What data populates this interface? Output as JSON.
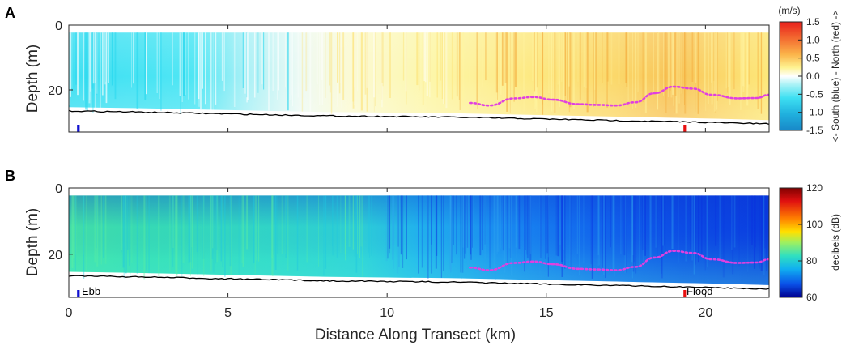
{
  "figure": {
    "xlabel": "Distance Along Transect (km)",
    "x_ticks": [
      "0",
      "5",
      "10",
      "15",
      "20"
    ]
  },
  "colors": {
    "bottom_line": "#000000",
    "pycnocline_dotted": "#e040e0",
    "ebb_marker": "#1010d0",
    "flood_marker": "#e81010"
  },
  "chart_data": [
    {
      "type": "heatmap",
      "panel": "A",
      "ylabel": "Depth (m)",
      "y_ticks": [
        "0",
        "20"
      ],
      "xlim": [
        0,
        22
      ],
      "ylim": [
        0,
        33
      ],
      "y_reversed": true,
      "colorbar": {
        "title": "(m/s)",
        "label": "<- South (blue) - North (red) ->",
        "ticks": [
          "1.5",
          "1.0",
          "0.5",
          "0.0",
          "-0.5",
          "-1.0",
          "-1.5"
        ],
        "range": [
          -1.5,
          1.5
        ]
      },
      "field_description_values": {
        "x": [
          0,
          2,
          4,
          6,
          8,
          10,
          12,
          14,
          16,
          18,
          20,
          22
        ],
        "mean_velocity": [
          -0.7,
          -0.7,
          -0.6,
          -0.3,
          0.2,
          0.4,
          0.5,
          0.55,
          0.6,
          0.8,
          0.7,
          0.6
        ]
      },
      "bottom_depth": {
        "x": [
          0,
          2,
          4,
          6,
          8,
          10,
          12,
          14,
          16,
          18,
          20,
          22
        ],
        "y": [
          26.5,
          26.8,
          27.2,
          27.6,
          28.0,
          28.2,
          28.4,
          28.8,
          29.2,
          29.6,
          30.0,
          30.5
        ]
      },
      "interface_dotted": {
        "x": [
          12.6,
          13.2,
          14,
          14.6,
          15.2,
          16,
          16.6,
          17.2,
          17.8,
          18.4,
          19,
          19.6,
          20.2,
          21,
          21.6,
          22
        ],
        "y": [
          24.0,
          24.8,
          22.6,
          22.2,
          23.0,
          24.4,
          24.6,
          24.8,
          23.8,
          21.0,
          19.0,
          19.6,
          21.5,
          22.6,
          22.5,
          21.5
        ]
      },
      "markers": [
        {
          "x": 0.3,
          "color": "#1010d0"
        },
        {
          "x": 19.35,
          "color": "#e81010"
        }
      ]
    },
    {
      "type": "heatmap",
      "panel": "B",
      "ylabel": "Depth (m)",
      "y_ticks": [
        "0",
        "20"
      ],
      "xlim": [
        0,
        22
      ],
      "ylim": [
        0,
        33
      ],
      "y_reversed": true,
      "colorbar": {
        "title": "",
        "label": "decibels (dB)",
        "ticks": [
          "120",
          "100",
          "80",
          "60"
        ],
        "range": [
          60,
          120
        ]
      },
      "field_description_values": {
        "x": [
          0,
          2,
          4,
          6,
          8,
          10,
          12,
          14,
          16,
          18,
          20,
          22
        ],
        "mean_backscatter": [
          86,
          87,
          86,
          85,
          84,
          82,
          78,
          76,
          75,
          74,
          73,
          74
        ]
      },
      "bottom_depth": {
        "x": [
          0,
          2,
          4,
          6,
          8,
          10,
          12,
          14,
          16,
          18,
          20,
          22
        ],
        "y": [
          26.5,
          26.8,
          27.2,
          27.6,
          28.0,
          28.2,
          28.4,
          28.8,
          29.2,
          29.6,
          30.0,
          30.5
        ]
      },
      "interface_dotted": {
        "x": [
          12.6,
          13.2,
          14,
          14.6,
          15.2,
          16,
          16.6,
          17.2,
          17.8,
          18.4,
          19,
          19.6,
          20.2,
          21,
          21.6,
          22
        ],
        "y": [
          24.0,
          24.8,
          22.6,
          22.2,
          23.0,
          24.4,
          24.6,
          24.8,
          23.8,
          21.0,
          19.0,
          19.6,
          21.5,
          22.6,
          22.5,
          21.5
        ]
      },
      "markers": [
        {
          "x": 0.3,
          "color": "#1010d0",
          "label": "Ebb"
        },
        {
          "x": 19.35,
          "color": "#e81010",
          "label": "Flood"
        }
      ]
    }
  ],
  "panels": {
    "a": {
      "letter": "A",
      "ylabel": "Depth (m)",
      "cb_title": "(m/s)",
      "cb_label": "<- South (blue) - North (red) ->"
    },
    "b": {
      "letter": "B",
      "ylabel": "Depth (m)",
      "cb_label": "decibels (dB)",
      "ebb_label": "Ebb",
      "flood_label": "Flood"
    }
  }
}
